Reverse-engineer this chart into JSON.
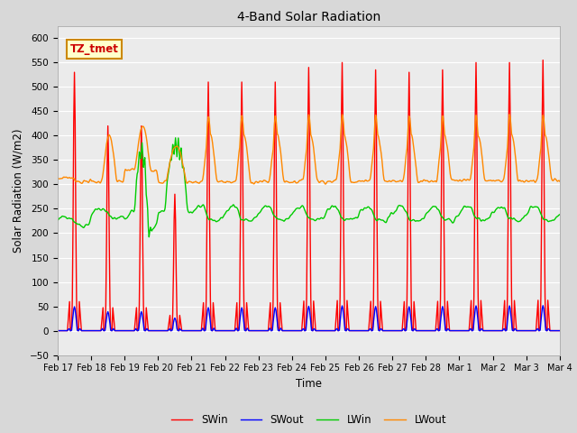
{
  "title": "4-Band Solar Radiation",
  "xlabel": "Time",
  "ylabel": "Solar Radiation (W/m2)",
  "ylim": [
    -50,
    625
  ],
  "annotation_text": "TZ_tmet",
  "annotation_color": "#cc0000",
  "annotation_bg": "#ffffcc",
  "annotation_border": "#cc8800",
  "series_colors": {
    "SWin": "#ff0000",
    "SWout": "#0000ff",
    "LWin": "#00cc00",
    "LWout": "#ff8800"
  },
  "lw": 1.0,
  "fig_bg": "#d8d8d8",
  "plot_bg": "#ebebeb",
  "grid_color": "#ffffff",
  "yticks": [
    -50,
    0,
    50,
    100,
    150,
    200,
    250,
    300,
    350,
    400,
    450,
    500,
    550,
    600
  ],
  "xtick_labels": [
    "Feb 17",
    "Feb 18",
    "Feb 19",
    "Feb 20",
    "Feb 21",
    "Feb 22",
    "Feb 23",
    "Feb 24",
    "Feb 25",
    "Feb 26",
    "Feb 27",
    "Feb 28",
    "Mar 1",
    "Mar 2",
    "Mar 3",
    "Mar 4"
  ]
}
